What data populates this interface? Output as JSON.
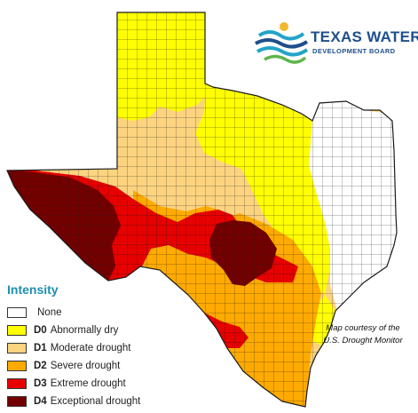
{
  "logo": {
    "title": "TEXAS WATER",
    "subtitle": "DEVELOPMENT BOARD",
    "colors": {
      "navy": "#1f4f8a",
      "teal": "#22a4c8",
      "green": "#5fb54a"
    }
  },
  "legend": {
    "title": "Intensity",
    "items": [
      {
        "code": "",
        "label": "None",
        "color": "#ffffff"
      },
      {
        "code": "D0",
        "label": "Abnormally dry",
        "color": "#ffff00"
      },
      {
        "code": "D1",
        "label": "Moderate drought",
        "color": "#fcd37f"
      },
      {
        "code": "D2",
        "label": "Severe drought",
        "color": "#ffaa00"
      },
      {
        "code": "D3",
        "label": "Extreme drought",
        "color": "#e60000"
      },
      {
        "code": "D4",
        "label": "Exceptional drought",
        "color": "#730000"
      }
    ]
  },
  "credit": {
    "line1": "Map courtesy of the",
    "line2": "U.S. Drought Monitor"
  }
}
